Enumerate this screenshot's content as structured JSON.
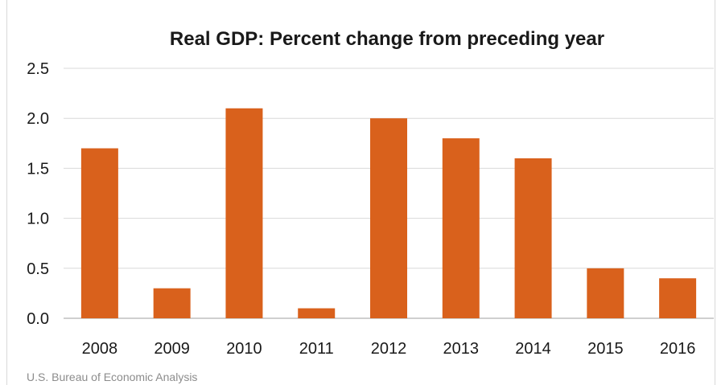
{
  "colors": {
    "bar": "#D9611C",
    "grid": "#d9d9d9",
    "axis": "#bfbfbf",
    "text": "#1a1a1a",
    "source": "#8c8c8c"
  },
  "source": "U.S. Bureau of Economic Analysis",
  "chart_data": {
    "type": "bar",
    "title": "Real GDP:  Percent change from preceding year",
    "xlabel": "",
    "ylabel": "",
    "categories": [
      "2008",
      "2009",
      "2010",
      "2011",
      "2012",
      "2013",
      "2014",
      "2015",
      "2016"
    ],
    "values": [
      1.7,
      0.3,
      2.1,
      0.1,
      2.0,
      1.8,
      1.6,
      0.5,
      0.4
    ],
    "ylim": [
      0,
      2.5
    ],
    "yticks": [
      "0.0",
      "0.5",
      "1.0",
      "1.5",
      "2.0",
      "2.5"
    ],
    "grid": true,
    "legend": "none"
  }
}
